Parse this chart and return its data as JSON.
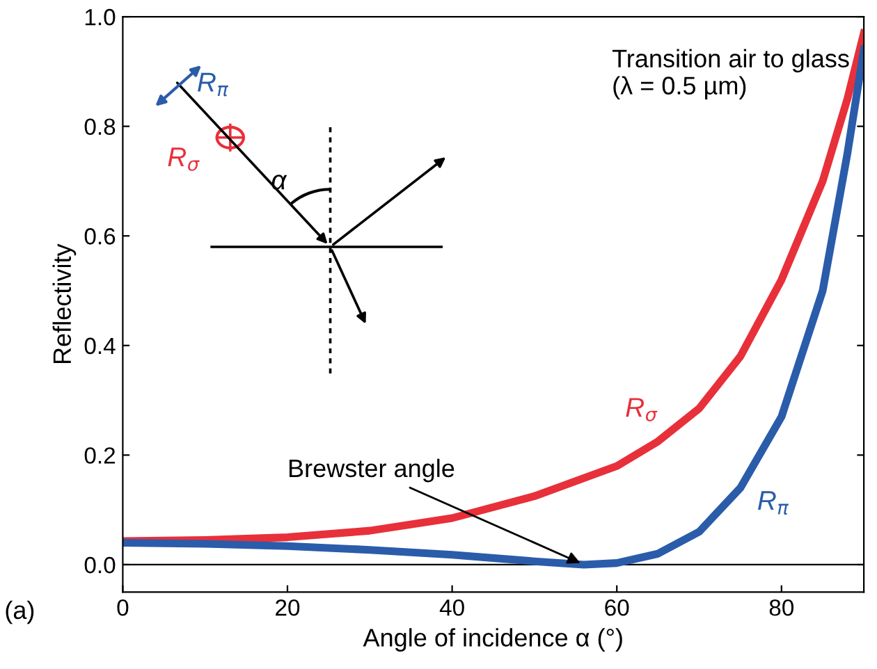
{
  "chart_data": {
    "type": "line",
    "xlabel": "Angle of incidence α (°)",
    "ylabel": "Reflectivity",
    "xlim": [
      0,
      90
    ],
    "ylim": [
      -0.05,
      1.0
    ],
    "xticks": [
      0,
      20,
      40,
      60,
      80
    ],
    "yticks": [
      {
        "value": 0,
        "label": "0.0"
      },
      0.2,
      0.4,
      0.6,
      0.8,
      {
        "value": 1.0,
        "label": "1.0"
      }
    ],
    "grid": false,
    "legend": false,
    "marker": "none",
    "line_style": "solid",
    "series": [
      {
        "name": "R$_{σ}$",
        "color": "#e8303a",
        "x": [
          0,
          10,
          20,
          30,
          40,
          50,
          60,
          65,
          70,
          75,
          80,
          85,
          88,
          90
        ],
        "values": [
          0.043,
          0.045,
          0.05,
          0.062,
          0.085,
          0.125,
          0.18,
          0.225,
          0.285,
          0.38,
          0.52,
          0.7,
          0.85,
          0.97
        ]
      },
      {
        "name": "R$_{π}$",
        "color": "#2a5caa",
        "x": [
          0,
          10,
          20,
          30,
          40,
          50,
          56,
          60,
          65,
          70,
          75,
          80,
          85,
          88,
          90
        ],
        "values": [
          0.04,
          0.038,
          0.034,
          0.027,
          0.018,
          0.006,
          0.0,
          0.003,
          0.02,
          0.06,
          0.14,
          0.27,
          0.5,
          0.75,
          0.94
        ]
      }
    ],
    "ref_lines": [
      {
        "axis": "y",
        "value": 0,
        "color": "#000000"
      }
    ],
    "annotations": [
      "Transition air to glass (λ = 0.5 µm)",
      {
        "text": "Brewster angle",
        "x": 56,
        "y": 0.0
      },
      "(a)",
      "R$_{π}$",
      "R$_{σ}$",
      "α"
    ]
  }
}
